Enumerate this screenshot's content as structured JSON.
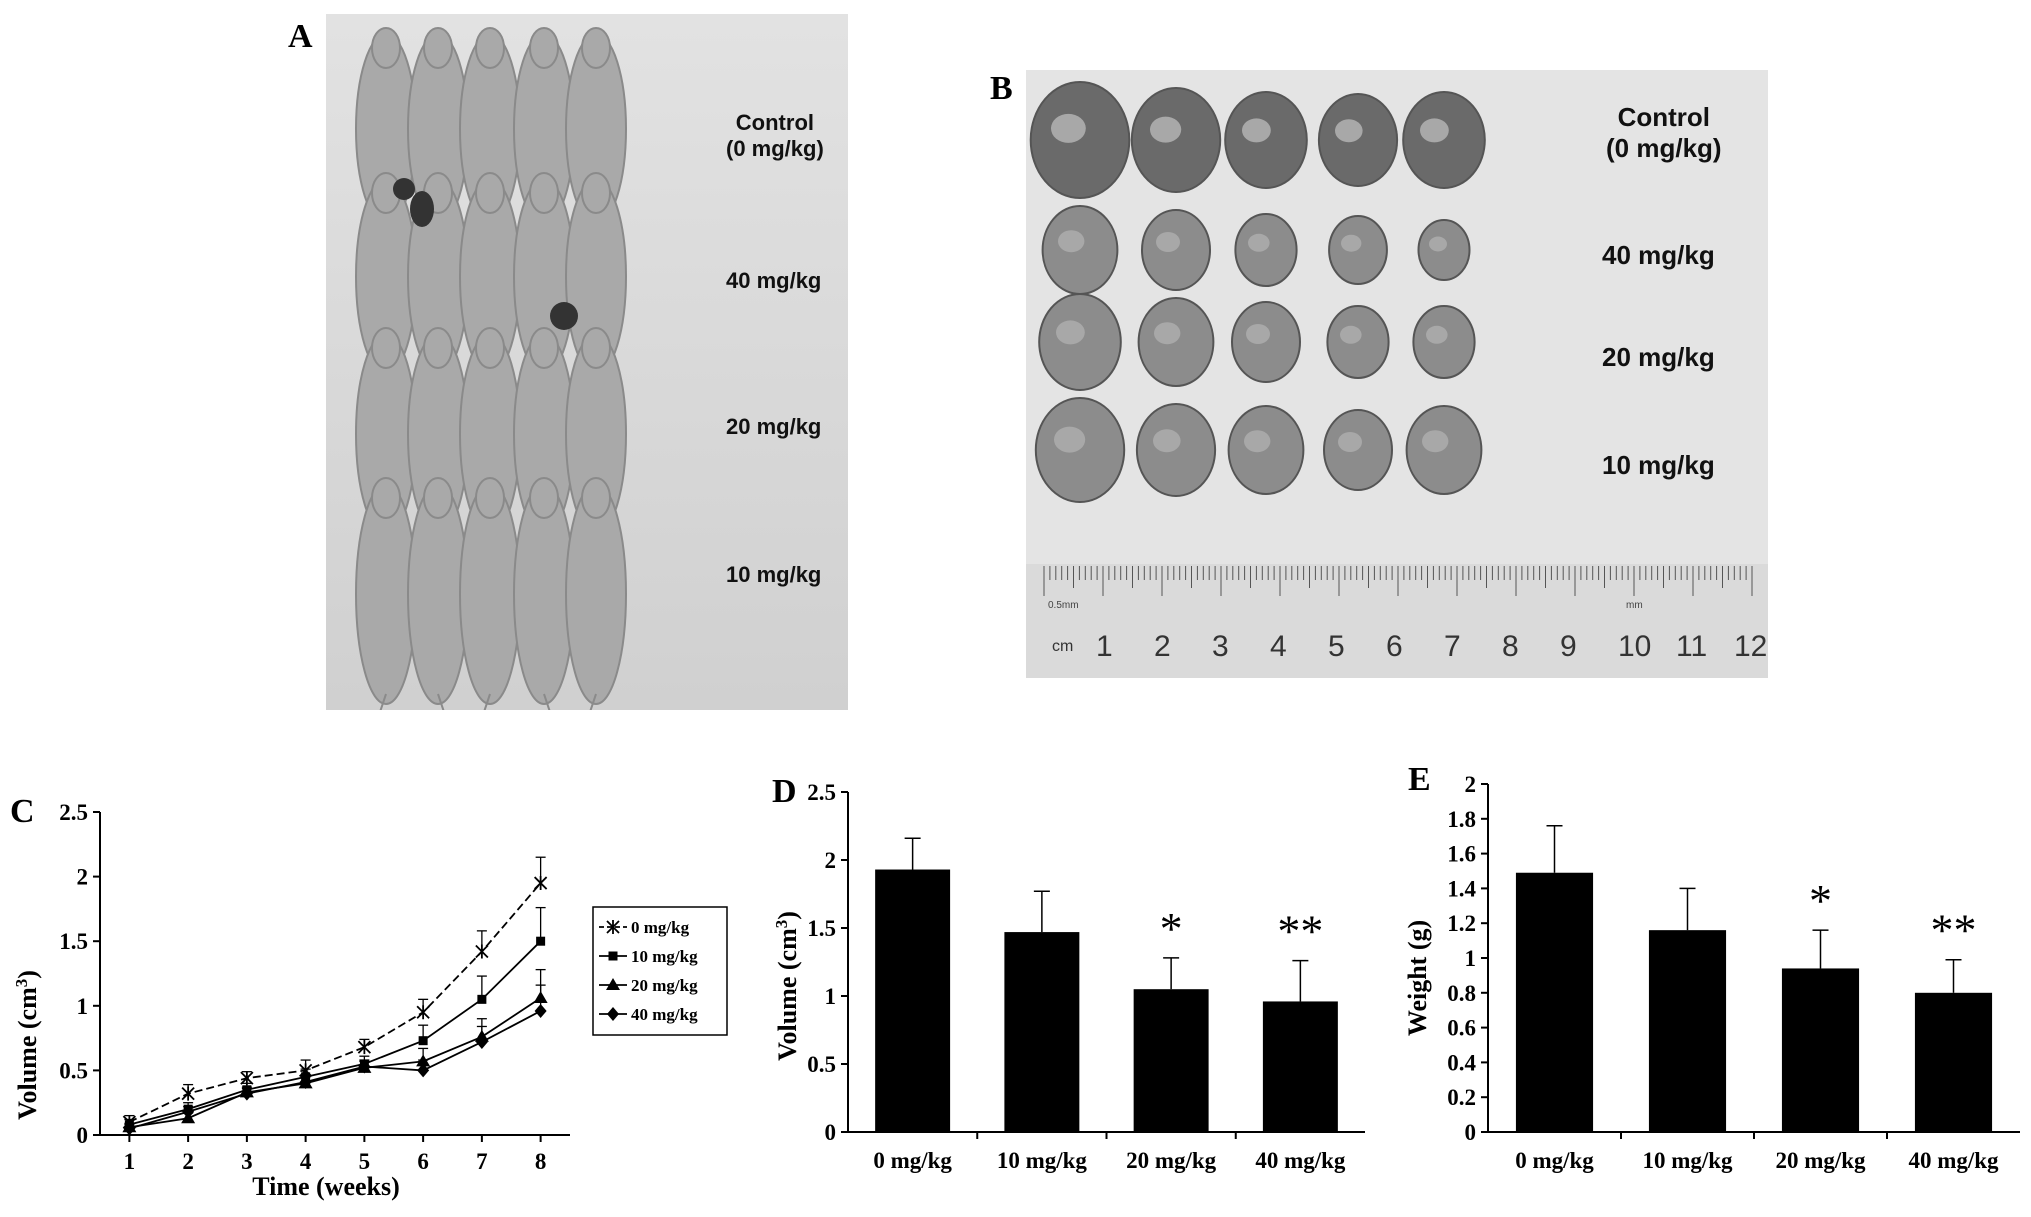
{
  "panels": {
    "A": {
      "letter": "A",
      "labels": [
        "Control\n(0 mg/kg)",
        "40 mg/kg",
        "20 mg/kg",
        "10 mg/kg"
      ]
    },
    "B": {
      "letter": "B",
      "labels": [
        "Control\n(0 mg/kg)",
        "40 mg/kg",
        "20 mg/kg",
        "10 mg/kg"
      ],
      "ruler_unit": "cm",
      "ruler_numbers": [
        "1",
        "2",
        "3",
        "4",
        "5",
        "6",
        "7",
        "8",
        "9",
        "10",
        "11",
        "12"
      ],
      "ruler_small": [
        "0.5mm",
        "mm"
      ]
    },
    "C": {
      "letter": "C"
    },
    "D": {
      "letter": "D"
    },
    "E": {
      "letter": "E"
    }
  },
  "chart_data": [
    {
      "id": "C",
      "type": "line",
      "xlabel": "Time (weeks)",
      "ylabel": "Volume (cm3)",
      "x": [
        1,
        2,
        3,
        4,
        5,
        6,
        7,
        8
      ],
      "xlim": [
        0.5,
        8.5
      ],
      "ylim": [
        0,
        2.5
      ],
      "yticks": [
        "0",
        "0.5",
        "1",
        "1.5",
        "2",
        "2.5"
      ],
      "legend": "right",
      "series": [
        {
          "name": "0 mg/kg",
          "marker": "x",
          "dash": true,
          "values": [
            0.1,
            0.32,
            0.44,
            0.5,
            0.68,
            0.95,
            1.42,
            1.95
          ],
          "err": [
            0.05,
            0.07,
            0.05,
            0.08,
            0.06,
            0.1,
            0.16,
            0.2
          ]
        },
        {
          "name": "10 mg/kg",
          "marker": "square",
          "dash": false,
          "values": [
            0.08,
            0.2,
            0.35,
            0.45,
            0.55,
            0.73,
            1.05,
            1.5
          ],
          "err": [
            0.04,
            0.05,
            0.05,
            0.06,
            0.06,
            0.12,
            0.18,
            0.26
          ]
        },
        {
          "name": "20 mg/kg",
          "marker": "triangle",
          "dash": false,
          "values": [
            0.06,
            0.13,
            0.33,
            0.4,
            0.52,
            0.57,
            0.76,
            1.06
          ],
          "err": [
            0.03,
            0.04,
            0.04,
            0.05,
            0.05,
            0.1,
            0.14,
            0.22
          ]
        },
        {
          "name": "40 mg/kg",
          "marker": "diamond",
          "dash": false,
          "values": [
            0.05,
            0.18,
            0.32,
            0.41,
            0.53,
            0.5,
            0.72,
            0.96
          ],
          "err": [
            0.03,
            0.04,
            0.04,
            0.05,
            0.05,
            0.08,
            0.12,
            0.2
          ]
        }
      ]
    },
    {
      "id": "D",
      "type": "bar",
      "ylabel": "Volume (cm3)",
      "categories": [
        "0 mg/kg",
        "10 mg/kg",
        "20 mg/kg",
        "40 mg/kg"
      ],
      "values": [
        1.93,
        1.47,
        1.05,
        0.96
      ],
      "err": [
        0.23,
        0.3,
        0.23,
        0.3
      ],
      "annotations": [
        "",
        "",
        "*",
        "**"
      ],
      "ylim": [
        0,
        2.5
      ],
      "yticks": [
        "0",
        "0.5",
        "1",
        "1.5",
        "2",
        "2.5"
      ]
    },
    {
      "id": "E",
      "type": "bar",
      "ylabel": "Weight (g)",
      "categories": [
        "0 mg/kg",
        "10 mg/kg",
        "20 mg/kg",
        "40 mg/kg"
      ],
      "values": [
        1.49,
        1.16,
        0.94,
        0.8
      ],
      "err": [
        0.27,
        0.24,
        0.22,
        0.19
      ],
      "annotations": [
        "",
        "",
        "*",
        "**"
      ],
      "ylim": [
        0,
        2
      ],
      "yticks": [
        "0",
        "0.2",
        "0.4",
        "0.6",
        "0.8",
        "1",
        "1.2",
        "1.4",
        "1.6",
        "1.8",
        "2"
      ]
    }
  ]
}
